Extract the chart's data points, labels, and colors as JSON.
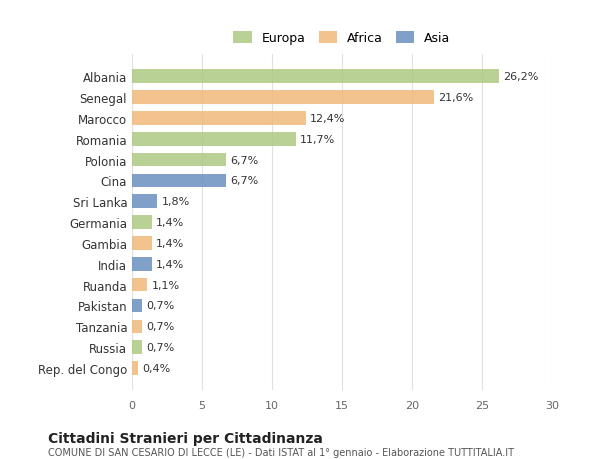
{
  "countries": [
    "Albania",
    "Senegal",
    "Marocco",
    "Romania",
    "Polonia",
    "Cina",
    "Sri Lanka",
    "Germania",
    "Gambia",
    "India",
    "Ruanda",
    "Pakistan",
    "Tanzania",
    "Russia",
    "Rep. del Congo"
  ],
  "values": [
    26.2,
    21.6,
    12.4,
    11.7,
    6.7,
    6.7,
    1.8,
    1.4,
    1.4,
    1.4,
    1.1,
    0.7,
    0.7,
    0.7,
    0.4
  ],
  "labels": [
    "26,2%",
    "21,6%",
    "12,4%",
    "11,7%",
    "6,7%",
    "6,7%",
    "1,8%",
    "1,4%",
    "1,4%",
    "1,4%",
    "1,1%",
    "0,7%",
    "0,7%",
    "0,7%",
    "0,4%"
  ],
  "continents": [
    "Europa",
    "Africa",
    "Africa",
    "Europa",
    "Europa",
    "Asia",
    "Asia",
    "Europa",
    "Africa",
    "Asia",
    "Africa",
    "Asia",
    "Africa",
    "Europa",
    "Africa"
  ],
  "colors": {
    "Europa": "#aec984",
    "Africa": "#f0b97a",
    "Asia": "#6b8fc0"
  },
  "legend_colors": {
    "Europa": "#aec984",
    "Africa": "#f0b97a",
    "Asia": "#6b8fc0"
  },
  "title": "Cittadini Stranieri per Cittadinanza",
  "subtitle": "COMUNE DI SAN CESARIO DI LECCE (LE) - Dati ISTAT al 1° gennaio - Elaborazione TUTTITALIA.IT",
  "xlim": [
    0,
    30
  ],
  "xticks": [
    0,
    5,
    10,
    15,
    20,
    25,
    30
  ],
  "bg_color": "#ffffff",
  "grid_color": "#e0e0e0",
  "bar_alpha": 0.85
}
